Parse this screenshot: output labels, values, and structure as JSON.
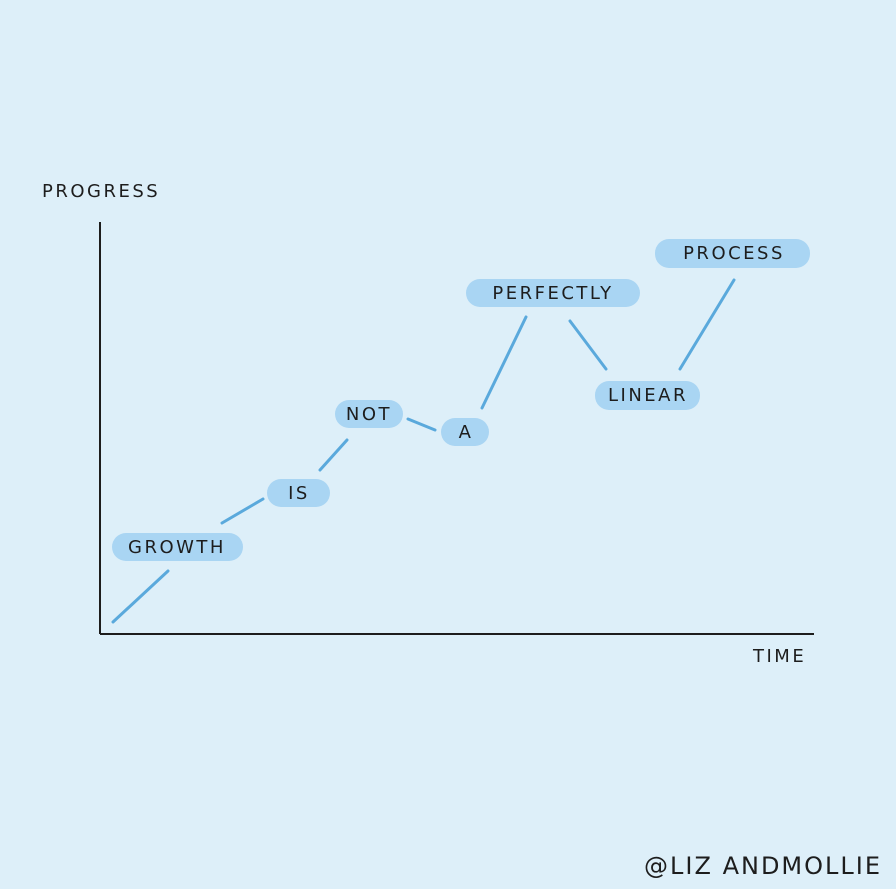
{
  "axes": {
    "y_label": "PROGRESS",
    "x_label": "TIME"
  },
  "nodes": [
    {
      "label": "GROWTH"
    },
    {
      "label": "IS"
    },
    {
      "label": "NOT"
    },
    {
      "label": "A"
    },
    {
      "label": "PERFECTLY"
    },
    {
      "label": "LINEAR"
    },
    {
      "label": "PROCESS"
    }
  ],
  "credit": "@LIZ ANDMOLLIE"
}
